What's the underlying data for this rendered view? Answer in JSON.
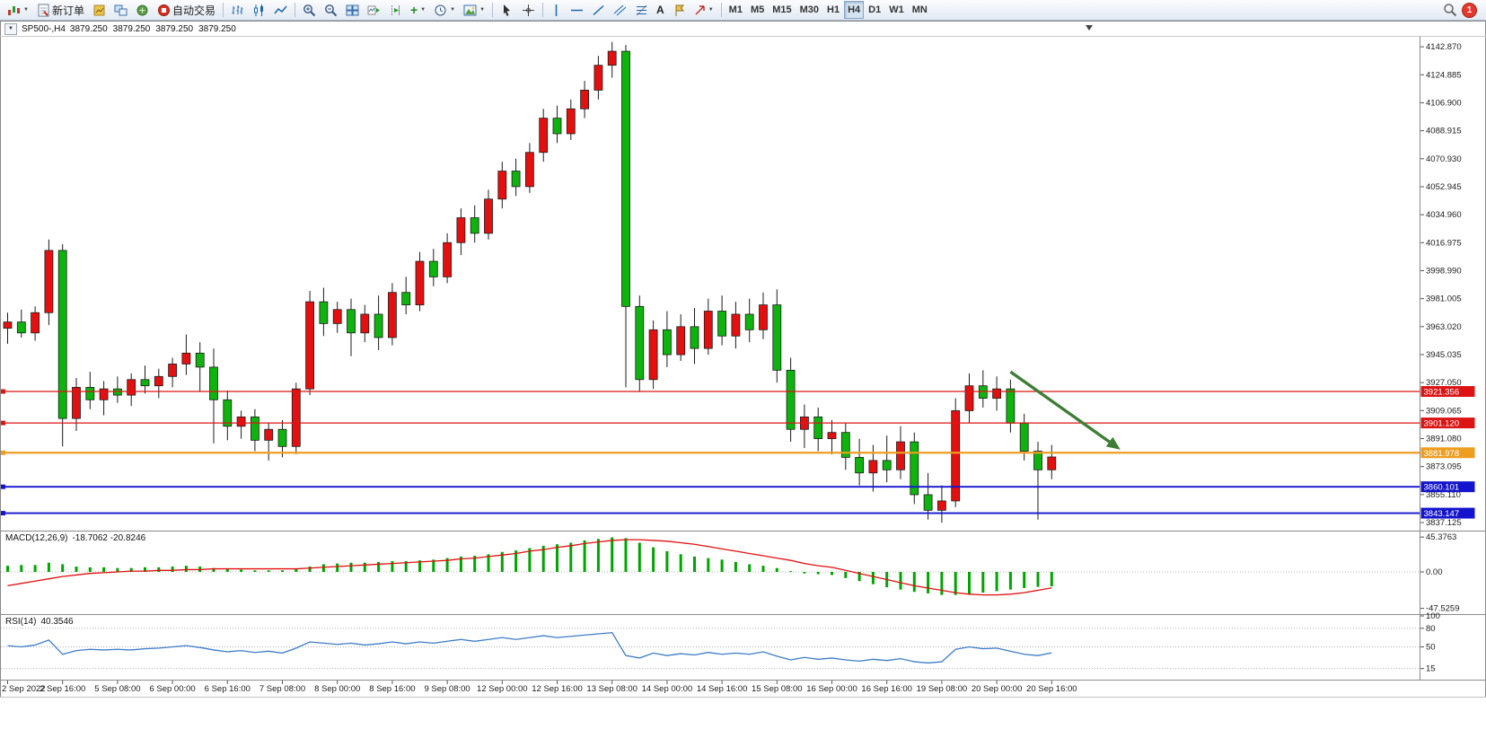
{
  "toolbar": {
    "new_order": "新订单",
    "auto_trading": "自动交易",
    "timeframes": [
      "M1",
      "M5",
      "M15",
      "M30",
      "H1",
      "H4",
      "D1",
      "W1",
      "MN"
    ],
    "active_timeframe": "H4",
    "notification_count": "1"
  },
  "chart_header": {
    "symbol_period": "SP500-,H4",
    "open": "3879.250",
    "high": "3879.250",
    "low": "3879.250",
    "close": "3879.250"
  },
  "chart_data": [
    {
      "type": "candlestick",
      "title": "SP500- H4 candlestick chart (red = up, green = down)",
      "label_every": 4,
      "x_labels": [
        "2 Sep 2022",
        "2 Sep 16:00",
        "5 Sep 08:00",
        "6 Sep 00:00",
        "6 Sep 16:00",
        "7 Sep 08:00",
        "8 Sep 00:00",
        "8 Sep 16:00",
        "9 Sep 08:00",
        "12 Sep 00:00",
        "12 Sep 16:00",
        "13 Sep 08:00",
        "14 Sep 00:00",
        "14 Sep 16:00",
        "15 Sep 08:00",
        "16 Sep 00:00",
        "16 Sep 16:00",
        "19 Sep 08:00",
        "20 Sep 00:00",
        "20 Sep 16:00"
      ],
      "y_ticks": [
        "4142.870",
        "4124.885",
        "4106.900",
        "4088.915",
        "4070.930",
        "4052.945",
        "4034.960",
        "4016.975",
        "3998.990",
        "3981.005",
        "3963.020",
        "3945.035",
        "3927.050",
        "3909.065",
        "3891.080",
        "3873.095",
        "3855.110",
        "3837.125"
      ],
      "candles": [
        [
          3962,
          3972,
          3952,
          3966
        ],
        [
          3966,
          3974,
          3956,
          3959
        ],
        [
          3959,
          3976,
          3954,
          3972
        ],
        [
          3972,
          4019,
          3964,
          4012
        ],
        [
          4012,
          4016,
          3886,
          3904
        ],
        [
          3904,
          3930,
          3896,
          3924
        ],
        [
          3924,
          3934,
          3910,
          3916
        ],
        [
          3916,
          3928,
          3906,
          3923
        ],
        [
          3923,
          3931,
          3914,
          3919
        ],
        [
          3919,
          3933,
          3912,
          3929
        ],
        [
          3929,
          3938,
          3920,
          3925
        ],
        [
          3925,
          3936,
          3917,
          3931
        ],
        [
          3931,
          3943,
          3924,
          3939
        ],
        [
          3939,
          3958,
          3932,
          3946
        ],
        [
          3946,
          3953,
          3921,
          3937
        ],
        [
          3937,
          3949,
          3888,
          3916
        ],
        [
          3916,
          3922,
          3890,
          3899
        ],
        [
          3899,
          3909,
          3891,
          3905
        ],
        [
          3905,
          3910,
          3883,
          3890
        ],
        [
          3890,
          3901,
          3877,
          3897
        ],
        [
          3897,
          3903,
          3879,
          3886
        ],
        [
          3886,
          3927,
          3881,
          3923
        ],
        [
          3923,
          3986,
          3919,
          3979
        ],
        [
          3979,
          3988,
          3957,
          3965
        ],
        [
          3965,
          3979,
          3959,
          3974
        ],
        [
          3974,
          3981,
          3944,
          3959
        ],
        [
          3959,
          3977,
          3953,
          3971
        ],
        [
          3971,
          3983,
          3948,
          3956
        ],
        [
          3956,
          3991,
          3951,
          3985
        ],
        [
          3985,
          3995,
          3971,
          3977
        ],
        [
          3977,
          4011,
          3973,
          4005
        ],
        [
          4005,
          4013,
          3989,
          3995
        ],
        [
          3995,
          4023,
          3991,
          4017
        ],
        [
          4017,
          4039,
          4009,
          4033
        ],
        [
          4033,
          4041,
          4017,
          4023
        ],
        [
          4023,
          4051,
          4019,
          4045
        ],
        [
          4045,
          4069,
          4039,
          4063
        ],
        [
          4063,
          4071,
          4047,
          4053
        ],
        [
          4053,
          4081,
          4049,
          4075
        ],
        [
          4075,
          4103,
          4069,
          4097
        ],
        [
          4097,
          4105,
          4081,
          4087
        ],
        [
          4087,
          4109,
          4083,
          4103
        ],
        [
          4103,
          4121,
          4097,
          4115
        ],
        [
          4115,
          4137,
          4109,
          4131
        ],
        [
          4131,
          4146,
          4123,
          4140
        ],
        [
          4140,
          4144,
          3924,
          3976
        ],
        [
          3976,
          3983,
          3921,
          3929
        ],
        [
          3929,
          3967,
          3923,
          3961
        ],
        [
          3961,
          3973,
          3937,
          3945
        ],
        [
          3945,
          3971,
          3941,
          3963
        ],
        [
          3963,
          3975,
          3939,
          3949
        ],
        [
          3949,
          3981,
          3945,
          3973
        ],
        [
          3973,
          3983,
          3951,
          3957
        ],
        [
          3957,
          3979,
          3949,
          3971
        ],
        [
          3971,
          3981,
          3953,
          3961
        ],
        [
          3961,
          3985,
          3955,
          3977
        ],
        [
          3977,
          3987,
          3927,
          3935
        ],
        [
          3935,
          3943,
          3889,
          3897
        ],
        [
          3897,
          3913,
          3885,
          3905
        ],
        [
          3905,
          3911,
          3883,
          3891
        ],
        [
          3891,
          3903,
          3881,
          3895
        ],
        [
          3895,
          3901,
          3871,
          3879
        ],
        [
          3879,
          3891,
          3861,
          3869
        ],
        [
          3869,
          3887,
          3857,
          3877
        ],
        [
          3877,
          3893,
          3863,
          3871
        ],
        [
          3871,
          3899,
          3865,
          3889
        ],
        [
          3889,
          3895,
          3849,
          3855
        ],
        [
          3855,
          3869,
          3839,
          3845
        ],
        [
          3845,
          3861,
          3837,
          3851
        ],
        [
          3851,
          3917,
          3847,
          3909
        ],
        [
          3909,
          3933,
          3901,
          3925
        ],
        [
          3925,
          3935,
          3911,
          3917
        ],
        [
          3917,
          3931,
          3909,
          3923
        ],
        [
          3923,
          3929,
          3895,
          3901
        ],
        [
          3901,
          3907,
          3877,
          3883
        ],
        [
          3883,
          3889,
          3839,
          3871
        ],
        [
          3871,
          3887,
          3865,
          3879.25
        ]
      ],
      "colors": {
        "up": "#e41010",
        "down": "#0eb30e",
        "outline": "#1c1c1c"
      },
      "horizontal_lines": [
        {
          "label": "3921.356",
          "price": 3921.356,
          "color": "#dc1414",
          "width": 1.2
        },
        {
          "label": "3901.120",
          "price": 3901.12,
          "color": "#dc1414",
          "width": 1.2
        },
        {
          "label": "3881.978",
          "price": 3881.978,
          "color": "#ed9e21",
          "width": 2.2
        },
        {
          "label": "3860.101",
          "price": 3860.101,
          "color": "#1414cd",
          "width": 1.8
        },
        {
          "label": "3843.147",
          "price": 3843.147,
          "color": "#1414cd",
          "width": 1.8
        }
      ],
      "arrow": {
        "bar1": 73,
        "price1": 3934,
        "bar2": 81,
        "price2": 3884,
        "color": "#3f7d36"
      }
    },
    {
      "type": "bar",
      "title": "MACD(12,26,9)",
      "values_label": "-18.7062 -20.8246",
      "y_ticks": [
        "45.3763",
        "0.00",
        "-47.5259"
      ],
      "histogram": [
        8,
        9,
        9,
        12,
        10,
        7,
        6,
        6,
        5,
        5,
        6,
        6,
        7,
        8,
        7,
        5,
        4,
        3,
        2,
        2,
        2,
        4,
        7,
        10,
        11,
        12,
        12,
        13,
        14,
        14,
        15,
        16,
        18,
        20,
        21,
        23,
        26,
        28,
        31,
        34,
        36,
        38,
        41,
        43,
        45,
        44,
        38,
        32,
        27,
        23,
        20,
        18,
        16,
        13,
        10,
        8,
        5,
        1,
        -2,
        -3,
        -4,
        -8,
        -12,
        -16,
        -20,
        -23,
        -26,
        -28,
        -30,
        -30,
        -29,
        -27,
        -25,
        -23,
        -21,
        -19.5,
        -18.7
      ],
      "signal": [
        -18,
        -15,
        -12,
        -9,
        -6,
        -4,
        -2,
        -1,
        0,
        1,
        1,
        2,
        2,
        3,
        3,
        4,
        4,
        4,
        4,
        4,
        4,
        4,
        5,
        6,
        7,
        8,
        9,
        10,
        11,
        12,
        13,
        14,
        15,
        17,
        18,
        20,
        22,
        24,
        27,
        29,
        32,
        34,
        37,
        39,
        41,
        42,
        42,
        41,
        40,
        38,
        36,
        33,
        30,
        27,
        24,
        21,
        18,
        15,
        11,
        8,
        6,
        2,
        -2,
        -6,
        -10,
        -14,
        -18,
        -21,
        -24,
        -27,
        -29,
        -30,
        -30,
        -29,
        -27,
        -24,
        -20.8
      ],
      "colors": {
        "histogram": "#00a500",
        "signal": "#e01010"
      }
    },
    {
      "type": "line",
      "title": "RSI(14)",
      "value_label": "40.3546",
      "y_ticks": [
        "100",
        "80",
        "50",
        "15"
      ],
      "levels": [
        80,
        50,
        15
      ],
      "values": [
        52,
        50,
        53,
        61,
        38,
        44,
        46,
        45,
        46,
        45,
        47,
        48,
        50,
        52,
        49,
        45,
        42,
        44,
        41,
        43,
        40,
        48,
        58,
        56,
        54,
        56,
        53,
        55,
        58,
        55,
        58,
        56,
        59,
        62,
        59,
        62,
        65,
        62,
        65,
        68,
        65,
        67,
        69,
        71,
        73,
        36,
        32,
        40,
        36,
        39,
        37,
        41,
        38,
        40,
        38,
        42,
        35,
        29,
        33,
        30,
        32,
        29,
        27,
        30,
        28,
        31,
        26,
        24,
        26,
        46,
        50,
        47,
        48,
        43,
        38,
        36,
        40.35
      ],
      "color": "#3e7cc8"
    }
  ]
}
